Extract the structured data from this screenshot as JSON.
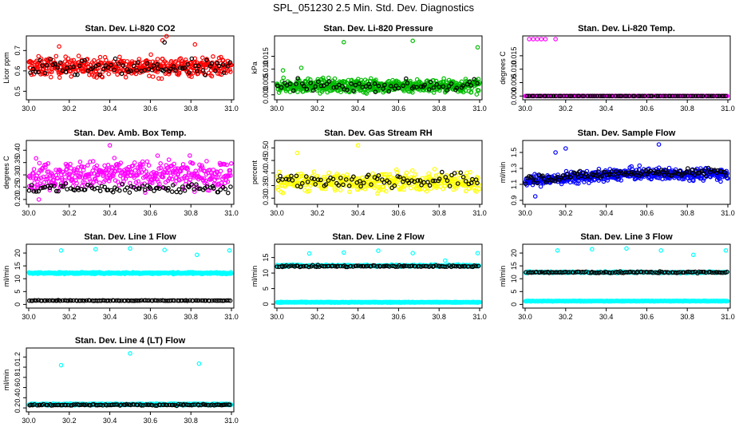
{
  "main_title": "SPL_051230  2.5 Min. Std. Dev. Diagnostics",
  "colors": {
    "red": "#ff0000",
    "green": "#00bb00",
    "magenta": "#ff00ff",
    "yellow": "#ffff00",
    "blue": "#0000ff",
    "cyan": "#00ffff",
    "black": "#000000"
  },
  "chart_data": [
    {
      "type": "scatter",
      "title": "Stan. Dev. Li-820 CO2",
      "ylabel": "Licor ppm",
      "xlim": [
        30.0,
        31.0
      ],
      "ylim": [
        0.47,
        0.76
      ],
      "xticks": [
        "30.0",
        "30.2",
        "30.4",
        "30.6",
        "30.8",
        "31.0"
      ],
      "yticks": [
        "0.5",
        "0.6",
        "0.7"
      ],
      "series": [
        {
          "color": "red",
          "n": 480,
          "pattern": "band",
          "center": 0.62,
          "spread": 0.045,
          "outliers": [
            [
              30.66,
              0.75
            ],
            [
              30.68,
              0.77
            ],
            [
              30.82,
              0.73
            ],
            [
              30.15,
              0.72
            ]
          ]
        },
        {
          "color": "black",
          "n": 80,
          "pattern": "band",
          "center": 0.61,
          "spread": 0.04,
          "outliers": [
            [
              30.67,
              0.74
            ]
          ]
        }
      ]
    },
    {
      "type": "scatter",
      "title": "Stan. Dev. Li-820 Pressure",
      "ylabel": "kPa",
      "xlim": [
        30.0,
        31.0
      ],
      "ylim": [
        -0.001,
        0.022
      ],
      "xticks": [
        "30.0",
        "30.2",
        "30.4",
        "30.6",
        "30.8",
        "31.0"
      ],
      "yticks": [
        "0.000",
        "0.005",
        "0.010",
        "0.015"
      ],
      "series": [
        {
          "color": "green",
          "n": 600,
          "pattern": "band",
          "center": 0.0035,
          "spread": 0.0025,
          "outliers": [
            [
              30.33,
              0.0205
            ],
            [
              30.67,
              0.021
            ],
            [
              30.99,
              0.0185
            ],
            [
              30.03,
              0.0095
            ],
            [
              30.12,
              0.0105
            ]
          ]
        },
        {
          "color": "black",
          "n": 70,
          "pattern": "band",
          "center": 0.0035,
          "spread": 0.002,
          "outliers": []
        }
      ]
    },
    {
      "type": "scatter",
      "title": "Stan. Dev. Li-820 Temp.",
      "ylabel": "degrees C",
      "xlim": [
        30.0,
        31.0
      ],
      "ylim": [
        -0.0005,
        0.0215
      ],
      "xticks": [
        "30.0",
        "30.2",
        "30.4",
        "30.6",
        "30.8",
        "31.0"
      ],
      "yticks": [
        "0.000",
        "0.005",
        "0.010",
        "0.015"
      ],
      "series": [
        {
          "color": "magenta",
          "n": 300,
          "pattern": "flat",
          "center": 0.0,
          "spread": 0.0,
          "outliers": [
            [
              30.02,
              0.0212
            ],
            [
              30.04,
              0.0212
            ],
            [
              30.06,
              0.0212
            ],
            [
              30.08,
              0.0212
            ],
            [
              30.1,
              0.0212
            ],
            [
              30.15,
              0.0212
            ]
          ]
        },
        {
          "color": "black",
          "n": 80,
          "pattern": "flat",
          "center": 0.0,
          "spread": 0.0,
          "outliers": []
        }
      ]
    },
    {
      "type": "scatter",
      "title": "Stan. Dev. Amb. Box Temp.",
      "ylabel": "degrees C",
      "xlim": [
        30.0,
        31.0
      ],
      "ylim": [
        0.19,
        0.43
      ],
      "xticks": [
        "30.0",
        "30.2",
        "30.4",
        "30.6",
        "30.8",
        "31.0"
      ],
      "yticks": [
        "0.20",
        "0.25",
        "0.30",
        "0.35",
        "0.40"
      ],
      "series": [
        {
          "color": "magenta",
          "n": 430,
          "pattern": "band",
          "center": 0.3,
          "spread": 0.055,
          "outliers": [
            [
              30.4,
              0.42
            ],
            [
              30.05,
              0.2
            ]
          ]
        },
        {
          "color": "black",
          "n": 90,
          "pattern": "band",
          "center": 0.245,
          "spread": 0.02,
          "outliers": []
        }
      ]
    },
    {
      "type": "scatter",
      "title": "Stan. Dev. Gas Stream RH",
      "ylabel": "percent",
      "xlim": [
        30.0,
        31.0
      ],
      "ylim": [
        0.285,
        0.52
      ],
      "xticks": [
        "30.0",
        "30.2",
        "30.4",
        "30.6",
        "30.8",
        "31.0"
      ],
      "yticks": [
        "0.30",
        "0.35",
        "0.40",
        "0.45",
        "0.50"
      ],
      "series": [
        {
          "color": "yellow",
          "n": 420,
          "pattern": "band",
          "center": 0.365,
          "spread": 0.035,
          "outliers": [
            [
              30.4,
              0.51
            ],
            [
              30.1,
              0.48
            ]
          ]
        },
        {
          "color": "black",
          "n": 80,
          "pattern": "band",
          "center": 0.37,
          "spread": 0.03,
          "outliers": []
        }
      ]
    },
    {
      "type": "scatter",
      "title": "Stan. Dev. Sample Flow",
      "ylabel": "ml/min",
      "xlim": [
        30.0,
        31.0
      ],
      "ylim": [
        0.88,
        1.62
      ],
      "xticks": [
        "30.0",
        "30.2",
        "30.4",
        "30.6",
        "30.8",
        "31.0"
      ],
      "yticks": [
        "0.9",
        "1.1",
        "1.3",
        "1.5"
      ],
      "series": [
        {
          "color": "blue",
          "n": 520,
          "pattern": "rise",
          "center": 1.2,
          "spread": 0.07,
          "outliers": [
            [
              30.66,
              1.6
            ],
            [
              30.15,
              1.5
            ],
            [
              30.05,
              0.95
            ],
            [
              30.2,
              1.55
            ]
          ]
        },
        {
          "color": "black",
          "n": 120,
          "pattern": "rise",
          "center": 1.22,
          "spread": 0.05,
          "outliers": []
        }
      ]
    },
    {
      "type": "scatter",
      "title": "Stan. Dev. Line 1 Flow",
      "ylabel": "ml/min",
      "xlim": [
        30.0,
        31.0
      ],
      "ylim": [
        -0.5,
        22.5
      ],
      "xticks": [
        "30.0",
        "30.2",
        "30.4",
        "30.6",
        "30.8",
        "31.0"
      ],
      "yticks": [
        "0",
        "5",
        "10",
        "15",
        "20"
      ],
      "series": [
        {
          "color": "cyan",
          "n": 450,
          "pattern": "band",
          "center": 12.2,
          "spread": 0.3,
          "outliers": [
            [
              30.16,
              21
            ],
            [
              30.33,
              21.5
            ],
            [
              30.5,
              21.8
            ],
            [
              30.67,
              21.2
            ],
            [
              30.83,
              19.3
            ],
            [
              30.99,
              21
            ]
          ]
        },
        {
          "color": "black",
          "n": 110,
          "pattern": "band",
          "center": 1.5,
          "spread": 0.1,
          "outliers": []
        }
      ]
    },
    {
      "type": "scatter",
      "title": "Stan. Dev. Line 2 Flow",
      "ylabel": "ml/min",
      "xlim": [
        30.0,
        31.0
      ],
      "ylim": [
        -0.5,
        18.5
      ],
      "xticks": [
        "30.0",
        "30.2",
        "30.4",
        "30.6",
        "30.8",
        "31.0"
      ],
      "yticks": [
        "0",
        "5",
        "10",
        "15"
      ],
      "series": [
        {
          "color": "cyan",
          "n": 450,
          "pattern": "band",
          "center": 0.6,
          "spread": 0.1,
          "outliers": [
            [
              30.16,
              16.3
            ],
            [
              30.33,
              16.6
            ],
            [
              30.5,
              17.2
            ],
            [
              30.67,
              16.4
            ],
            [
              30.83,
              14
            ],
            [
              30.99,
              16.4
            ]
          ]
        },
        {
          "color": "cyan",
          "n": 250,
          "pattern": "band",
          "center": 12.4,
          "spread": 0.3,
          "outliers": []
        },
        {
          "color": "black",
          "n": 110,
          "pattern": "band",
          "center": 12.2,
          "spread": 0.25,
          "outliers": []
        }
      ]
    },
    {
      "type": "scatter",
      "title": "Stan. Dev. Line 3 Flow",
      "ylabel": "ml/min",
      "xlim": [
        30.0,
        31.0
      ],
      "ylim": [
        -0.5,
        22.5
      ],
      "xticks": [
        "30.0",
        "30.2",
        "30.4",
        "30.6",
        "30.8",
        "31.0"
      ],
      "yticks": [
        "0",
        "5",
        "10",
        "15",
        "20"
      ],
      "series": [
        {
          "color": "cyan",
          "n": 450,
          "pattern": "band",
          "center": 1.3,
          "spread": 0.1,
          "outliers": [
            [
              30.16,
              21
            ],
            [
              30.33,
              21.5
            ],
            [
              30.5,
              21.8
            ],
            [
              30.67,
              21
            ],
            [
              30.83,
              19.3
            ],
            [
              30.99,
              21
            ]
          ]
        },
        {
          "color": "cyan",
          "n": 200,
          "pattern": "band",
          "center": 12.5,
          "spread": 0.3,
          "outliers": []
        },
        {
          "color": "black",
          "n": 110,
          "pattern": "band",
          "center": 12.5,
          "spread": 0.3,
          "outliers": []
        }
      ]
    },
    {
      "type": "scatter",
      "title": "Stan. Dev. Line 4 (LT) Flow",
      "ylabel": "ml/min",
      "xlim": [
        30.0,
        31.0
      ],
      "ylim": [
        0.17,
        1.33
      ],
      "xticks": [
        "30.0",
        "30.2",
        "30.4",
        "30.6",
        "30.8",
        "31.0"
      ],
      "yticks": [
        "0.2",
        "0.4",
        "0.6",
        "0.8",
        "1.0",
        "1.2"
      ],
      "series": [
        {
          "color": "cyan",
          "n": 450,
          "pattern": "band",
          "center": 0.27,
          "spread": 0.015,
          "outliers": [
            [
              30.16,
              1.04
            ],
            [
              30.5,
              1.27
            ],
            [
              30.84,
              1.07
            ]
          ]
        },
        {
          "color": "black",
          "n": 110,
          "pattern": "band",
          "center": 0.26,
          "spread": 0.012,
          "outliers": []
        }
      ]
    }
  ]
}
